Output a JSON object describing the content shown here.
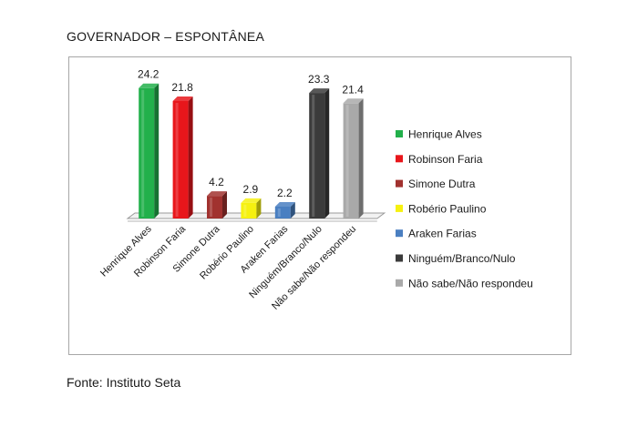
{
  "header": {
    "title": "GOVERNADOR – ESPONTÂNEA"
  },
  "footer": {
    "source": "Fonte: Instituto Seta"
  },
  "chart_data": {
    "type": "bar",
    "title": "GOVERNADOR – ESPONTÂNEA",
    "categories": [
      "Henrique Alves",
      "Robinson Faria",
      "Simone Dutra",
      "Robério Paulino",
      "Araken Farias",
      "Ninguém/Branco/Nulo",
      "Não sabe/Não respondeu"
    ],
    "values": [
      24.2,
      21.8,
      4.2,
      2.9,
      2.2,
      23.3,
      21.4
    ],
    "colors": [
      "#22b04b",
      "#e8161b",
      "#a1322f",
      "#f6f110",
      "#4a7fc1",
      "#3b3b3b",
      "#a9a9a9"
    ],
    "legend_position": "right",
    "data_labels": true,
    "three_d": true,
    "grid": false,
    "ylim": [
      0,
      25
    ]
  }
}
